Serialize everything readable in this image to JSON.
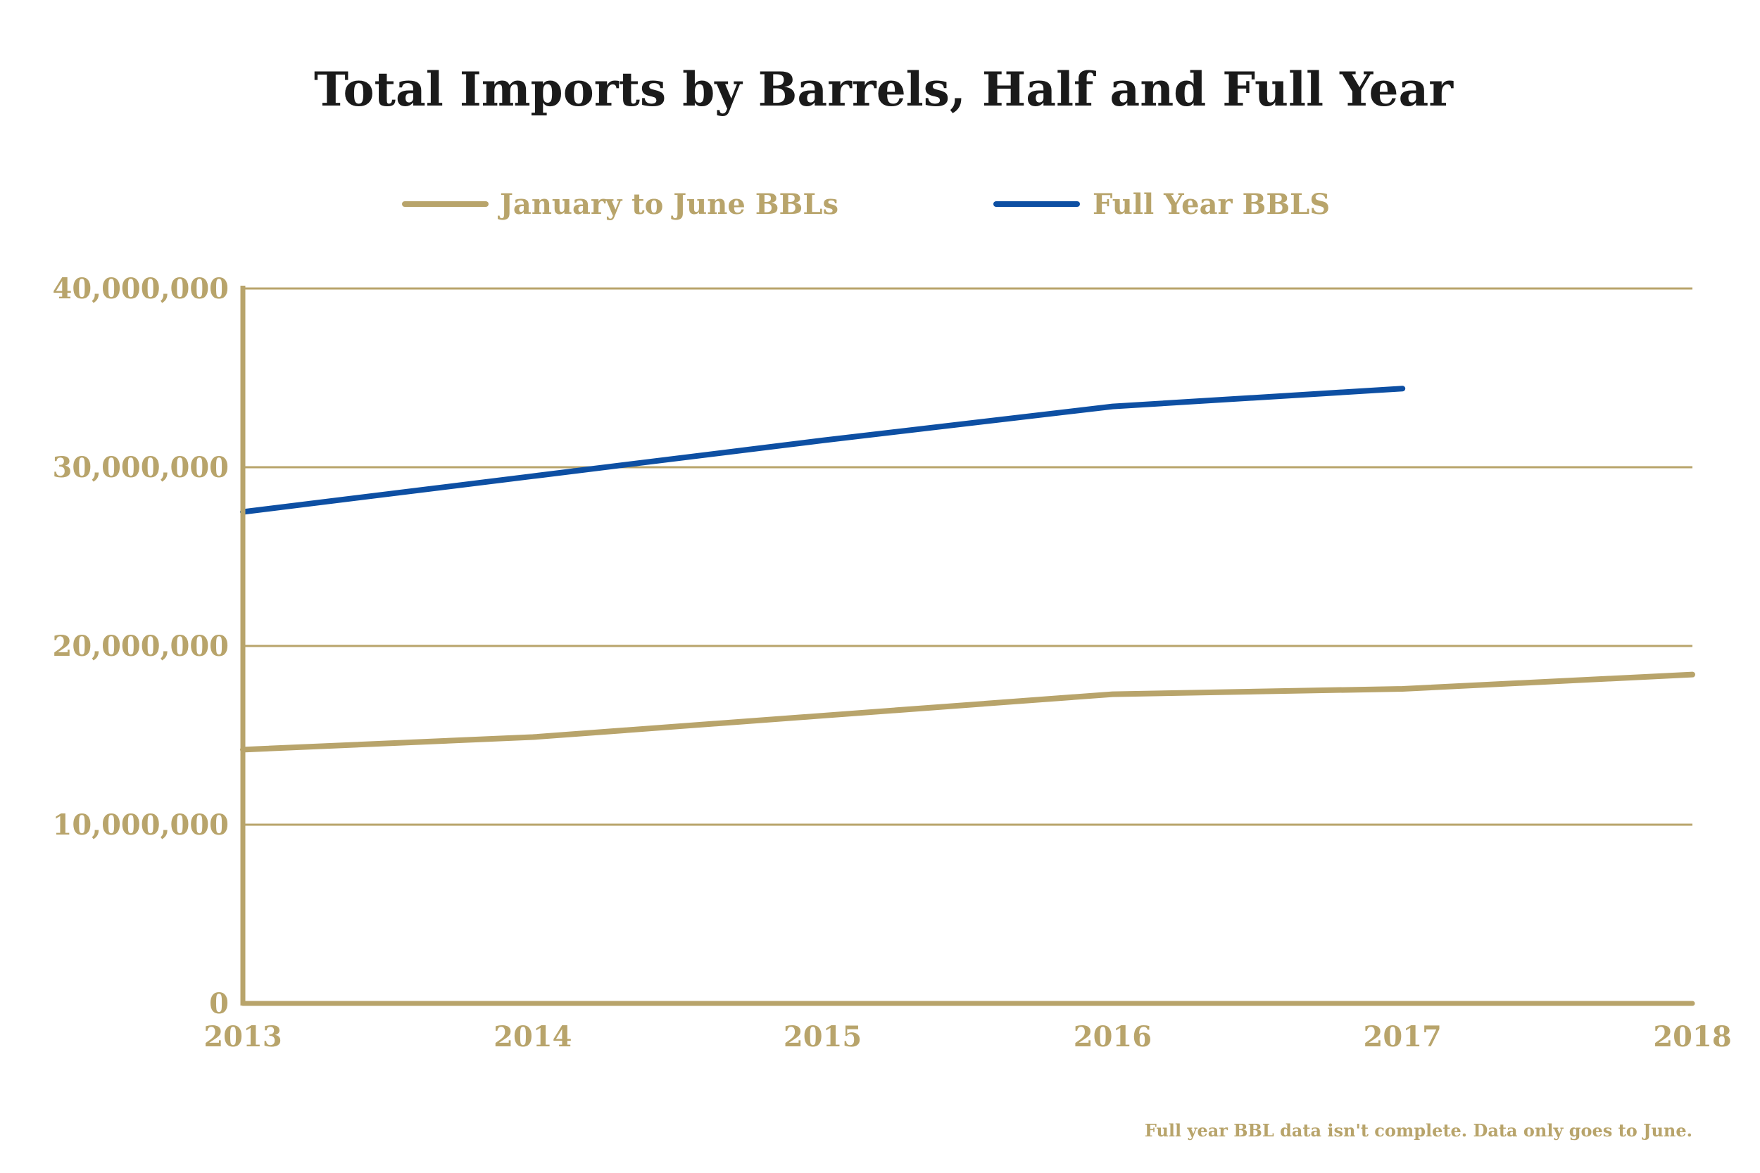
{
  "colors": {
    "gold": "#B8A46B",
    "blue": "#0D4FA3",
    "title": "#1A1A1A"
  },
  "chart_data": {
    "type": "line",
    "title": "Total Imports by Barrels, Half and Full Year",
    "xlabel": "",
    "ylabel": "",
    "x": [
      "2013",
      "2014",
      "2015",
      "2016",
      "2017",
      "2018"
    ],
    "y_ticks": [
      "0",
      "10,000,000",
      "20,000,000",
      "30,000,000",
      "40,000,000"
    ],
    "ylim": [
      0,
      40000000
    ],
    "grid": true,
    "legend_position": "top",
    "series": [
      {
        "name": "January to June BBLs",
        "color": "#B8A46B",
        "values": [
          14200000,
          14900000,
          16100000,
          17300000,
          17600000,
          18400000
        ]
      },
      {
        "name": "Full Year BBLS",
        "color": "#0D4FA3",
        "values": [
          27500000,
          29500000,
          31500000,
          33400000,
          34400000,
          null
        ]
      }
    ],
    "annotations": [
      "Full year BBL data isn't complete. Data only goes to June."
    ]
  }
}
